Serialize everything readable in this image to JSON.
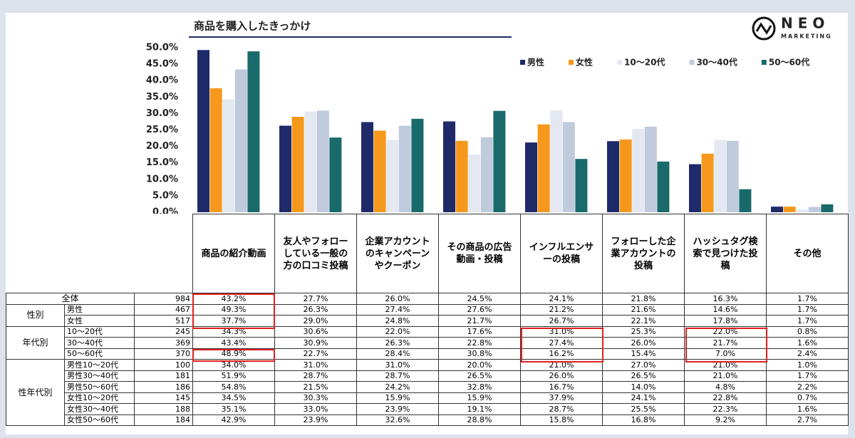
{
  "chart_data": {
    "type": "bar",
    "title": "商品を購入したきっかけ",
    "categories": [
      "商品の紹介動画",
      "友人やフォローしている一般の方の口コミ投稿",
      "企業アカウントのキャンペーンやクーポン",
      "その商品の広告動画・投稿",
      "インフルエンサーの投稿",
      "フォローした企業アカウントの投稿",
      "ハッシュタグ検索で見つけた投稿",
      "その他"
    ],
    "series": [
      {
        "name": "男性",
        "color": "#1f2a6b",
        "values": [
          49.3,
          26.3,
          27.4,
          27.6,
          21.2,
          21.6,
          14.6,
          1.7
        ]
      },
      {
        "name": "女性",
        "color": "#f5981c",
        "values": [
          37.7,
          29.0,
          24.8,
          21.7,
          26.7,
          22.1,
          17.8,
          1.7
        ]
      },
      {
        "name": "10～20代",
        "color": "#e4e8f1",
        "values": [
          34.3,
          30.6,
          22.0,
          17.6,
          31.0,
          25.3,
          22.0,
          0.8
        ]
      },
      {
        "name": "30～40代",
        "color": "#bfcadd",
        "values": [
          43.4,
          30.9,
          26.3,
          22.8,
          27.4,
          26.0,
          21.7,
          1.6
        ]
      },
      {
        "name": "50～60代",
        "color": "#1a6a6c",
        "values": [
          48.9,
          22.7,
          28.4,
          30.8,
          16.2,
          15.4,
          7.0,
          2.4
        ]
      }
    ],
    "ylim": [
      0,
      50
    ],
    "yticks": [
      {
        "value": 0,
        "label": "0.0%"
      },
      {
        "value": 5,
        "label": "5.0%"
      },
      {
        "value": 10,
        "label": "10.0%"
      },
      {
        "value": 15,
        "label": "15.0%"
      },
      {
        "value": 20,
        "label": "20.0%"
      },
      {
        "value": 25,
        "label": "25.0%"
      },
      {
        "value": 30,
        "label": "30.0%"
      },
      {
        "value": 35,
        "label": "35.0%"
      },
      {
        "value": 40,
        "label": "40.0%"
      },
      {
        "value": 45,
        "label": "45.0%"
      },
      {
        "value": 50,
        "label": "50.0%"
      }
    ],
    "grid": false,
    "legend": "upper right"
  },
  "logo": {
    "name": "NEO",
    "sub": "MARKETING"
  },
  "table": {
    "groups": [
      {
        "label": "全体",
        "rows": [
          {
            "n": "984",
            "values": [
              "43.2%",
              "27.7%",
              "26.0%",
              "24.5%",
              "24.1%",
              "21.8%",
              "16.3%",
              "1.7%"
            ]
          }
        ]
      },
      {
        "label": "性別",
        "rows": [
          {
            "label": "男性",
            "n": "467",
            "values": [
              "49.3%",
              "26.3%",
              "27.4%",
              "27.6%",
              "21.2%",
              "21.6%",
              "14.6%",
              "1.7%"
            ]
          },
          {
            "label": "女性",
            "n": "517",
            "values": [
              "37.7%",
              "29.0%",
              "24.8%",
              "21.7%",
              "26.7%",
              "22.1%",
              "17.8%",
              "1.7%"
            ]
          }
        ]
      },
      {
        "label": "年代別",
        "rows": [
          {
            "label": "10～20代",
            "n": "245",
            "values": [
              "34.3%",
              "30.6%",
              "22.0%",
              "17.6%",
              "31.0%",
              "25.3%",
              "22.0%",
              "0.8%"
            ]
          },
          {
            "label": "30～40代",
            "n": "369",
            "values": [
              "43.4%",
              "30.9%",
              "26.3%",
              "22.8%",
              "27.4%",
              "26.0%",
              "21.7%",
              "1.6%"
            ]
          },
          {
            "label": "50～60代",
            "n": "370",
            "values": [
              "48.9%",
              "22.7%",
              "28.4%",
              "30.8%",
              "16.2%",
              "15.4%",
              "7.0%",
              "2.4%"
            ]
          }
        ]
      },
      {
        "label": "性年代別",
        "rows": [
          {
            "label": "男性10～20代",
            "n": "100",
            "values": [
              "34.0%",
              "31.0%",
              "31.0%",
              "20.0%",
              "21.0%",
              "27.0%",
              "21.0%",
              "1.0%"
            ]
          },
          {
            "label": "男性30～40代",
            "n": "181",
            "values": [
              "51.9%",
              "28.7%",
              "28.7%",
              "26.5%",
              "26.0%",
              "26.5%",
              "21.0%",
              "1.7%"
            ]
          },
          {
            "label": "男性50～60代",
            "n": "186",
            "values": [
              "54.8%",
              "21.5%",
              "24.2%",
              "32.8%",
              "16.7%",
              "14.0%",
              "4.8%",
              "2.2%"
            ]
          },
          {
            "label": "女性10～20代",
            "n": "145",
            "values": [
              "34.5%",
              "30.3%",
              "15.9%",
              "15.9%",
              "37.9%",
              "24.1%",
              "22.8%",
              "0.7%"
            ]
          },
          {
            "label": "女性30～40代",
            "n": "188",
            "values": [
              "35.1%",
              "33.0%",
              "23.9%",
              "19.1%",
              "28.7%",
              "25.5%",
              "22.3%",
              "1.6%"
            ]
          },
          {
            "label": "女性50～60代",
            "n": "184",
            "values": [
              "42.9%",
              "23.9%",
              "32.6%",
              "28.8%",
              "15.8%",
              "16.8%",
              "9.2%",
              "2.7%"
            ]
          }
        ]
      }
    ]
  }
}
